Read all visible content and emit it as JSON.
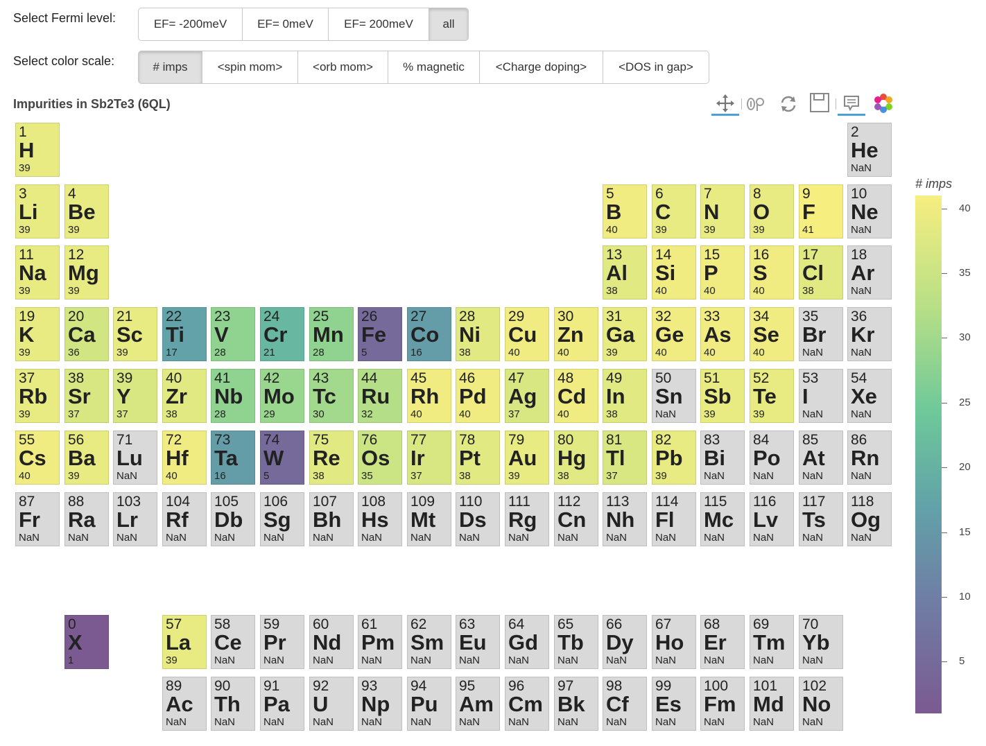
{
  "fermi": {
    "label": "Select Fermi level:",
    "options": [
      {
        "label": "EF= -200meV",
        "active": false
      },
      {
        "label": "EF= 0meV",
        "active": false
      },
      {
        "label": "EF= 200meV",
        "active": false
      },
      {
        "label": "all",
        "active": true
      }
    ]
  },
  "colorscale": {
    "label": "Select color scale:",
    "options": [
      {
        "label": "# imps",
        "active": true
      },
      {
        "label": "<spin mom>",
        "active": false
      },
      {
        "label": "<orb mom>",
        "active": false
      },
      {
        "label": "% magnetic",
        "active": false
      },
      {
        "label": "<Charge doping>",
        "active": false
      },
      {
        "label": "<DOS in gap>",
        "active": false
      }
    ]
  },
  "plot": {
    "title": "Impurities in Sb2Te3 (6QL)",
    "tools": [
      "pan-icon",
      "zoom-icon",
      "reset-icon",
      "save-icon",
      "hover-icon",
      "bokeh-logo-icon"
    ]
  },
  "colorbar": {
    "title": "# imps",
    "min": 1,
    "max": 41,
    "ticks": [
      5,
      10,
      15,
      20,
      25,
      30,
      35,
      40
    ]
  },
  "colors": {
    "nan": "#d9d9d9",
    "low": "#7b5a91",
    "high": "#f7ee80"
  },
  "elements": [
    {
      "z": "1",
      "s": "H",
      "v": "39",
      "p": 1,
      "g": 1
    },
    {
      "z": "2",
      "s": "He",
      "v": "NaN",
      "p": 1,
      "g": 18
    },
    {
      "z": "3",
      "s": "Li",
      "v": "39",
      "p": 2,
      "g": 1
    },
    {
      "z": "4",
      "s": "Be",
      "v": "39",
      "p": 2,
      "g": 2
    },
    {
      "z": "5",
      "s": "B",
      "v": "40",
      "p": 2,
      "g": 13
    },
    {
      "z": "6",
      "s": "C",
      "v": "39",
      "p": 2,
      "g": 14
    },
    {
      "z": "7",
      "s": "N",
      "v": "39",
      "p": 2,
      "g": 15
    },
    {
      "z": "8",
      "s": "O",
      "v": "39",
      "p": 2,
      "g": 16
    },
    {
      "z": "9",
      "s": "F",
      "v": "41",
      "p": 2,
      "g": 17
    },
    {
      "z": "10",
      "s": "Ne",
      "v": "NaN",
      "p": 2,
      "g": 18
    },
    {
      "z": "11",
      "s": "Na",
      "v": "39",
      "p": 3,
      "g": 1
    },
    {
      "z": "12",
      "s": "Mg",
      "v": "39",
      "p": 3,
      "g": 2
    },
    {
      "z": "13",
      "s": "Al",
      "v": "38",
      "p": 3,
      "g": 13
    },
    {
      "z": "14",
      "s": "Si",
      "v": "40",
      "p": 3,
      "g": 14
    },
    {
      "z": "15",
      "s": "P",
      "v": "40",
      "p": 3,
      "g": 15
    },
    {
      "z": "16",
      "s": "S",
      "v": "40",
      "p": 3,
      "g": 16
    },
    {
      "z": "17",
      "s": "Cl",
      "v": "38",
      "p": 3,
      "g": 17
    },
    {
      "z": "18",
      "s": "Ar",
      "v": "NaN",
      "p": 3,
      "g": 18
    },
    {
      "z": "19",
      "s": "K",
      "v": "39",
      "p": 4,
      "g": 1
    },
    {
      "z": "20",
      "s": "Ca",
      "v": "36",
      "p": 4,
      "g": 2
    },
    {
      "z": "21",
      "s": "Sc",
      "v": "39",
      "p": 4,
      "g": 3
    },
    {
      "z": "22",
      "s": "Ti",
      "v": "17",
      "p": 4,
      "g": 4
    },
    {
      "z": "23",
      "s": "V",
      "v": "28",
      "p": 4,
      "g": 5
    },
    {
      "z": "24",
      "s": "Cr",
      "v": "21",
      "p": 4,
      "g": 6
    },
    {
      "z": "25",
      "s": "Mn",
      "v": "28",
      "p": 4,
      "g": 7
    },
    {
      "z": "26",
      "s": "Fe",
      "v": "5",
      "p": 4,
      "g": 8
    },
    {
      "z": "27",
      "s": "Co",
      "v": "16",
      "p": 4,
      "g": 9
    },
    {
      "z": "28",
      "s": "Ni",
      "v": "38",
      "p": 4,
      "g": 10
    },
    {
      "z": "29",
      "s": "Cu",
      "v": "40",
      "p": 4,
      "g": 11
    },
    {
      "z": "30",
      "s": "Zn",
      "v": "40",
      "p": 4,
      "g": 12
    },
    {
      "z": "31",
      "s": "Ga",
      "v": "39",
      "p": 4,
      "g": 13
    },
    {
      "z": "32",
      "s": "Ge",
      "v": "40",
      "p": 4,
      "g": 14
    },
    {
      "z": "33",
      "s": "As",
      "v": "40",
      "p": 4,
      "g": 15
    },
    {
      "z": "34",
      "s": "Se",
      "v": "40",
      "p": 4,
      "g": 16
    },
    {
      "z": "35",
      "s": "Br",
      "v": "NaN",
      "p": 4,
      "g": 17
    },
    {
      "z": "36",
      "s": "Kr",
      "v": "NaN",
      "p": 4,
      "g": 18
    },
    {
      "z": "37",
      "s": "Rb",
      "v": "39",
      "p": 5,
      "g": 1
    },
    {
      "z": "38",
      "s": "Sr",
      "v": "37",
      "p": 5,
      "g": 2
    },
    {
      "z": "39",
      "s": "Y",
      "v": "37",
      "p": 5,
      "g": 3
    },
    {
      "z": "40",
      "s": "Zr",
      "v": "38",
      "p": 5,
      "g": 4
    },
    {
      "z": "41",
      "s": "Nb",
      "v": "28",
      "p": 5,
      "g": 5
    },
    {
      "z": "42",
      "s": "Mo",
      "v": "29",
      "p": 5,
      "g": 6
    },
    {
      "z": "43",
      "s": "Tc",
      "v": "30",
      "p": 5,
      "g": 7
    },
    {
      "z": "44",
      "s": "Ru",
      "v": "32",
      "p": 5,
      "g": 8
    },
    {
      "z": "45",
      "s": "Rh",
      "v": "40",
      "p": 5,
      "g": 9
    },
    {
      "z": "46",
      "s": "Pd",
      "v": "40",
      "p": 5,
      "g": 10
    },
    {
      "z": "47",
      "s": "Ag",
      "v": "37",
      "p": 5,
      "g": 11
    },
    {
      "z": "48",
      "s": "Cd",
      "v": "40",
      "p": 5,
      "g": 12
    },
    {
      "z": "49",
      "s": "In",
      "v": "38",
      "p": 5,
      "g": 13
    },
    {
      "z": "50",
      "s": "Sn",
      "v": "NaN",
      "p": 5,
      "g": 14
    },
    {
      "z": "51",
      "s": "Sb",
      "v": "39",
      "p": 5,
      "g": 15
    },
    {
      "z": "52",
      "s": "Te",
      "v": "39",
      "p": 5,
      "g": 16
    },
    {
      "z": "53",
      "s": "I",
      "v": "NaN",
      "p": 5,
      "g": 17
    },
    {
      "z": "54",
      "s": "Xe",
      "v": "NaN",
      "p": 5,
      "g": 18
    },
    {
      "z": "55",
      "s": "Cs",
      "v": "40",
      "p": 6,
      "g": 1
    },
    {
      "z": "56",
      "s": "Ba",
      "v": "39",
      "p": 6,
      "g": 2
    },
    {
      "z": "71",
      "s": "Lu",
      "v": "NaN",
      "p": 6,
      "g": 3
    },
    {
      "z": "72",
      "s": "Hf",
      "v": "40",
      "p": 6,
      "g": 4
    },
    {
      "z": "73",
      "s": "Ta",
      "v": "16",
      "p": 6,
      "g": 5
    },
    {
      "z": "74",
      "s": "W",
      "v": "5",
      "p": 6,
      "g": 6
    },
    {
      "z": "75",
      "s": "Re",
      "v": "38",
      "p": 6,
      "g": 7
    },
    {
      "z": "76",
      "s": "Os",
      "v": "35",
      "p": 6,
      "g": 8
    },
    {
      "z": "77",
      "s": "Ir",
      "v": "37",
      "p": 6,
      "g": 9
    },
    {
      "z": "78",
      "s": "Pt",
      "v": "38",
      "p": 6,
      "g": 10
    },
    {
      "z": "79",
      "s": "Au",
      "v": "39",
      "p": 6,
      "g": 11
    },
    {
      "z": "80",
      "s": "Hg",
      "v": "38",
      "p": 6,
      "g": 12
    },
    {
      "z": "81",
      "s": "Tl",
      "v": "37",
      "p": 6,
      "g": 13
    },
    {
      "z": "82",
      "s": "Pb",
      "v": "39",
      "p": 6,
      "g": 14
    },
    {
      "z": "83",
      "s": "Bi",
      "v": "NaN",
      "p": 6,
      "g": 15
    },
    {
      "z": "84",
      "s": "Po",
      "v": "NaN",
      "p": 6,
      "g": 16
    },
    {
      "z": "85",
      "s": "At",
      "v": "NaN",
      "p": 6,
      "g": 17
    },
    {
      "z": "86",
      "s": "Rn",
      "v": "NaN",
      "p": 6,
      "g": 18
    },
    {
      "z": "87",
      "s": "Fr",
      "v": "NaN",
      "p": 7,
      "g": 1
    },
    {
      "z": "88",
      "s": "Ra",
      "v": "NaN",
      "p": 7,
      "g": 2
    },
    {
      "z": "103",
      "s": "Lr",
      "v": "NaN",
      "p": 7,
      "g": 3
    },
    {
      "z": "104",
      "s": "Rf",
      "v": "NaN",
      "p": 7,
      "g": 4
    },
    {
      "z": "105",
      "s": "Db",
      "v": "NaN",
      "p": 7,
      "g": 5
    },
    {
      "z": "106",
      "s": "Sg",
      "v": "NaN",
      "p": 7,
      "g": 6
    },
    {
      "z": "107",
      "s": "Bh",
      "v": "NaN",
      "p": 7,
      "g": 7
    },
    {
      "z": "108",
      "s": "Hs",
      "v": "NaN",
      "p": 7,
      "g": 8
    },
    {
      "z": "109",
      "s": "Mt",
      "v": "NaN",
      "p": 7,
      "g": 9
    },
    {
      "z": "110",
      "s": "Ds",
      "v": "NaN",
      "p": 7,
      "g": 10
    },
    {
      "z": "111",
      "s": "Rg",
      "v": "NaN",
      "p": 7,
      "g": 11
    },
    {
      "z": "112",
      "s": "Cn",
      "v": "NaN",
      "p": 7,
      "g": 12
    },
    {
      "z": "113",
      "s": "Nh",
      "v": "NaN",
      "p": 7,
      "g": 13
    },
    {
      "z": "114",
      "s": "Fl",
      "v": "NaN",
      "p": 7,
      "g": 14
    },
    {
      "z": "115",
      "s": "Mc",
      "v": "NaN",
      "p": 7,
      "g": 15
    },
    {
      "z": "116",
      "s": "Lv",
      "v": "NaN",
      "p": 7,
      "g": 16
    },
    {
      "z": "117",
      "s": "Ts",
      "v": "NaN",
      "p": 7,
      "g": 17
    },
    {
      "z": "118",
      "s": "Og",
      "v": "NaN",
      "p": 7,
      "g": 18
    },
    {
      "z": "0",
      "s": "X",
      "v": "1",
      "p": 9,
      "g": 2
    },
    {
      "z": "57",
      "s": "La",
      "v": "39",
      "p": 9,
      "g": 4
    },
    {
      "z": "58",
      "s": "Ce",
      "v": "NaN",
      "p": 9,
      "g": 5
    },
    {
      "z": "59",
      "s": "Pr",
      "v": "NaN",
      "p": 9,
      "g": 6
    },
    {
      "z": "60",
      "s": "Nd",
      "v": "NaN",
      "p": 9,
      "g": 7
    },
    {
      "z": "61",
      "s": "Pm",
      "v": "NaN",
      "p": 9,
      "g": 8
    },
    {
      "z": "62",
      "s": "Sm",
      "v": "NaN",
      "p": 9,
      "g": 9
    },
    {
      "z": "63",
      "s": "Eu",
      "v": "NaN",
      "p": 9,
      "g": 10
    },
    {
      "z": "64",
      "s": "Gd",
      "v": "NaN",
      "p": 9,
      "g": 11
    },
    {
      "z": "65",
      "s": "Tb",
      "v": "NaN",
      "p": 9,
      "g": 12
    },
    {
      "z": "66",
      "s": "Dy",
      "v": "NaN",
      "p": 9,
      "g": 13
    },
    {
      "z": "67",
      "s": "Ho",
      "v": "NaN",
      "p": 9,
      "g": 14
    },
    {
      "z": "68",
      "s": "Er",
      "v": "NaN",
      "p": 9,
      "g": 15
    },
    {
      "z": "69",
      "s": "Tm",
      "v": "NaN",
      "p": 9,
      "g": 16
    },
    {
      "z": "70",
      "s": "Yb",
      "v": "NaN",
      "p": 9,
      "g": 17
    },
    {
      "z": "89",
      "s": "Ac",
      "v": "NaN",
      "p": 10,
      "g": 4
    },
    {
      "z": "90",
      "s": "Th",
      "v": "NaN",
      "p": 10,
      "g": 5
    },
    {
      "z": "91",
      "s": "Pa",
      "v": "NaN",
      "p": 10,
      "g": 6
    },
    {
      "z": "92",
      "s": "U",
      "v": "NaN",
      "p": 10,
      "g": 7
    },
    {
      "z": "93",
      "s": "Np",
      "v": "NaN",
      "p": 10,
      "g": 8
    },
    {
      "z": "94",
      "s": "Pu",
      "v": "NaN",
      "p": 10,
      "g": 9
    },
    {
      "z": "95",
      "s": "Am",
      "v": "NaN",
      "p": 10,
      "g": 10
    },
    {
      "z": "96",
      "s": "Cm",
      "v": "NaN",
      "p": 10,
      "g": 11
    },
    {
      "z": "97",
      "s": "Bk",
      "v": "NaN",
      "p": 10,
      "g": 12
    },
    {
      "z": "98",
      "s": "Cf",
      "v": "NaN",
      "p": 10,
      "g": 13
    },
    {
      "z": "99",
      "s": "Es",
      "v": "NaN",
      "p": 10,
      "g": 14
    },
    {
      "z": "100",
      "s": "Fm",
      "v": "NaN",
      "p": 10,
      "g": 15
    },
    {
      "z": "101",
      "s": "Md",
      "v": "NaN",
      "p": 10,
      "g": 16
    },
    {
      "z": "102",
      "s": "No",
      "v": "NaN",
      "p": 10,
      "g": 17
    }
  ]
}
